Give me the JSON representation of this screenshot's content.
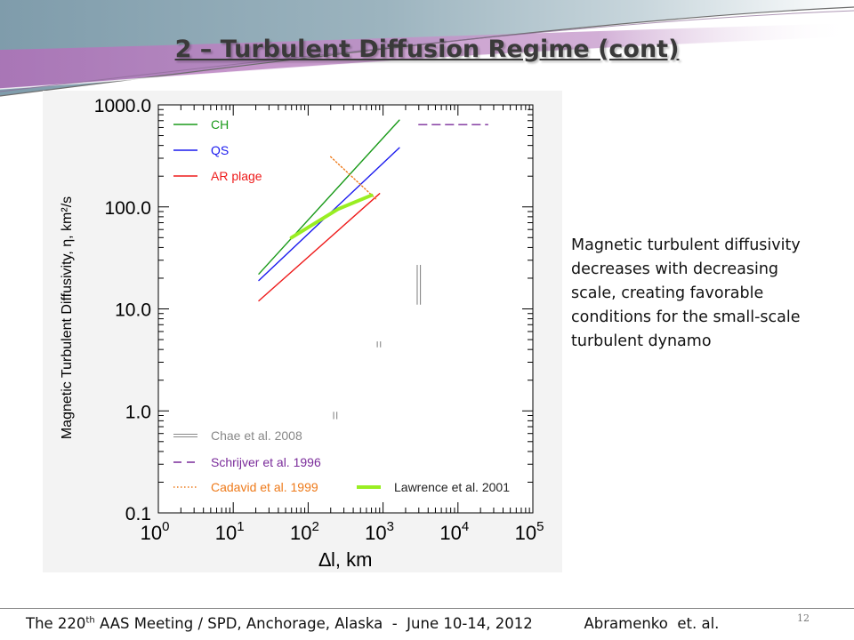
{
  "slide": {
    "title": "2 – Turbulent Diffusion Regime (cont)",
    "caption": "Magnetic turbulent diffusivity decreases with decreasing scale, creating favorable conditions for the small-scale turbulent dynamo",
    "footer": {
      "meeting_pre": "The 220",
      "meeting_sup": "th",
      "meeting_post": " AAS Meeting / SPD, Anchorage, Alaska  -  June 10-14, 2012",
      "authors": "Abramenko  et. al."
    },
    "page_number": "12"
  },
  "chart_data": {
    "type": "line",
    "xscale": "log",
    "yscale": "log",
    "xlim": [
      1,
      100000
    ],
    "ylim": [
      0.1,
      1000
    ],
    "x_ticks": [
      {
        "base": "10",
        "exp": "0"
      },
      {
        "base": "10",
        "exp": "1"
      },
      {
        "base": "10",
        "exp": "2"
      },
      {
        "base": "10",
        "exp": "3"
      },
      {
        "base": "10",
        "exp": "4"
      },
      {
        "base": "10",
        "exp": "5"
      }
    ],
    "y_ticks": [
      "1000.0",
      "100.0",
      "10.0",
      "1.0",
      "0.1"
    ],
    "xlabel": "∆l, km",
    "ylabel": "Magnetic Turbulent Diffusivity, η, km²/s",
    "series": [
      {
        "name": "CH",
        "color": "#1a9a1a",
        "style": "solid",
        "points": [
          [
            22,
            22
          ],
          [
            1650,
            710
          ]
        ]
      },
      {
        "name": "QS",
        "color": "#1a1aee",
        "style": "solid",
        "points": [
          [
            22,
            19
          ],
          [
            1650,
            380
          ]
        ]
      },
      {
        "name": "AR plage",
        "color": "#ee1a1a",
        "style": "solid",
        "points": [
          [
            22,
            12
          ],
          [
            900,
            135
          ]
        ]
      },
      {
        "name": "Chae et al. 2008",
        "color": "#888888",
        "style": "double",
        "segments": [
          [
            [
              230,
              0.83
            ],
            [
              230,
              0.98
            ]
          ],
          [
            [
              880,
              4.2
            ],
            [
              880,
              4.8
            ]
          ],
          [
            [
              3000,
              11
            ],
            [
              3000,
              27
            ]
          ]
        ]
      },
      {
        "name": "Schrijver et al. 1996",
        "color": "#7a2b9a",
        "style": "dashed",
        "points": [
          [
            3000,
            640
          ],
          [
            25000,
            640
          ]
        ]
      },
      {
        "name": "Cadavid et al. 1999",
        "color": "#ee7a1a",
        "style": "dotted",
        "points": [
          [
            200,
            310
          ],
          [
            800,
            120
          ]
        ]
      },
      {
        "name": "Lawrence et al. 2001",
        "color": "#99ee22",
        "style": "solid-thick",
        "points": [
          [
            60,
            50
          ],
          [
            250,
            95
          ],
          [
            700,
            130
          ]
        ]
      }
    ],
    "legend_upper": [
      "CH",
      "QS",
      "AR plage"
    ],
    "legend_lower": [
      "Chae et al. 2008",
      "Schrijver et al. 1996",
      "Cadavid et al. 1999",
      "Lawrence et al. 2001"
    ]
  }
}
